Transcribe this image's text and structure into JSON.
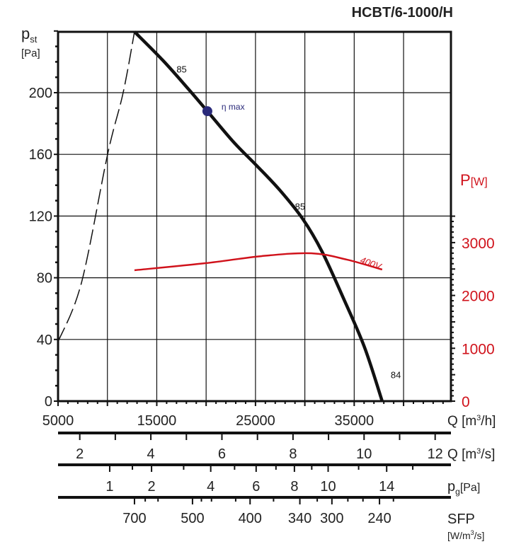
{
  "chart_data": {
    "type": "line",
    "title": "HCBT/6-1000/H",
    "xlabel": "Q [m3/h]",
    "ylabel": "pst [Pa]",
    "y2label": "P[W]",
    "xlim": [
      5000,
      44800
    ],
    "ylim": [
      0,
      240
    ],
    "y2lim": [
      0,
      3500
    ],
    "grid": true,
    "x_ticks": [
      5000,
      15000,
      25000,
      35000
    ],
    "y_ticks": [
      0,
      40,
      80,
      120,
      160,
      200
    ],
    "y2_ticks": [
      0,
      1000,
      2000,
      3000
    ],
    "colors": {
      "pressure": "#111111",
      "power": "#d0121b",
      "eta_max": "#2a2a7a",
      "axis_right": "#d0121b"
    },
    "pressure_curve": [
      [
        12742,
        239.5
      ],
      [
        15609,
        221
      ],
      [
        18118,
        203
      ],
      [
        20125,
        188
      ],
      [
        22778,
        168
      ],
      [
        25072,
        153
      ],
      [
        27437,
        137
      ],
      [
        29803,
        118
      ],
      [
        31738,
        97
      ],
      [
        33889,
        67
      ],
      [
        36039,
        35
      ],
      [
        37832,
        0
      ]
    ],
    "system_curve_dashed": [
      [
        5000,
        38.5
      ],
      [
        7366,
        76.6
      ],
      [
        10018,
        160
      ],
      [
        11595,
        200
      ],
      [
        12742,
        239.5
      ]
    ],
    "power_curve": {
      "label": "400V",
      "points": [
        [
          12742,
          2477
        ],
        [
          19910,
          2610
        ],
        [
          25645,
          2745
        ],
        [
          30663,
          2798
        ],
        [
          34247,
          2678
        ],
        [
          37832,
          2490
        ]
      ]
    },
    "eta_max": {
      "label": "η max",
      "point": [
        20125,
        188
      ]
    },
    "efficiency_labels": [
      {
        "text": "85",
        "at": [
          17000,
          213
        ]
      },
      {
        "text": "85",
        "at": [
          29000,
          124
        ]
      },
      {
        "text": "84",
        "at": [
          38700,
          15
        ]
      }
    ],
    "secondary_axes": {
      "q_m3s": {
        "label": "Q [m3/s]",
        "ticks": [
          2,
          3,
          4,
          5,
          6,
          7,
          8,
          9,
          10,
          11,
          12
        ],
        "labels": [
          "2",
          "4",
          "6",
          "8",
          "10",
          "12"
        ]
      },
      "pg": {
        "label": "pg[Pa]",
        "ticks": [
          1,
          1.5,
          2,
          3,
          4,
          5,
          6,
          7,
          8,
          9,
          10,
          12,
          14,
          16
        ],
        "labels": [
          "1",
          "2",
          "4",
          "6",
          "8",
          "10",
          "14"
        ]
      },
      "sfp": {
        "label": "SFP",
        "unit": "[W/m3/s]",
        "ticks": [
          700,
          650,
          600,
          500,
          480,
          460,
          420,
          400,
          370,
          340,
          320,
          300,
          280,
          260,
          240,
          230
        ],
        "labels": [
          "700",
          "500",
          "400",
          "340",
          "300",
          "240"
        ]
      }
    },
    "q_m3h_unit": "Q [m3/h]"
  }
}
